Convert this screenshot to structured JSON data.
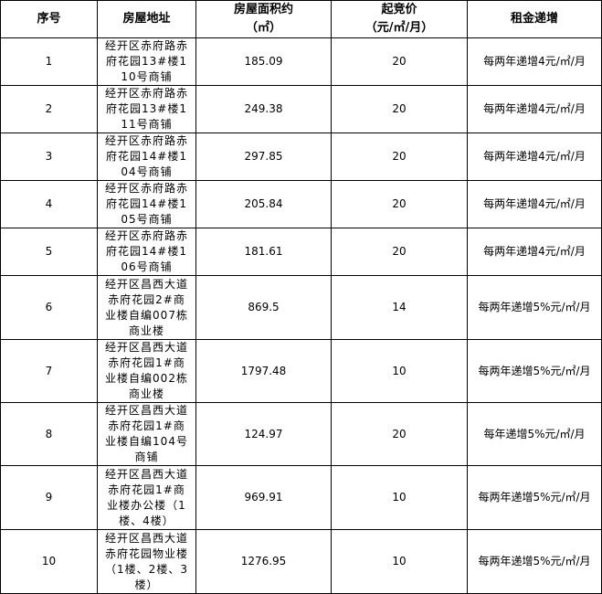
{
  "headers": [
    "序号",
    "房屋地址",
    "房屋面积约（㎡）",
    "起竞价（元/㎡/月）",
    "租金递增"
  ],
  "header_lines": {
    "area": [
      "房屋面积约",
      "（㎡）"
    ],
    "price": [
      "起竞价",
      "（元/㎡/月）"
    ]
  },
  "rows": [
    {
      "no": "1",
      "address": "经开区赤府路赤府花园13#楼110号商铺",
      "area": "185.09",
      "price": "20",
      "increase": "每两年递增4元/㎡/月"
    },
    {
      "no": "2",
      "address": "经开区赤府路赤府花园13#楼111号商铺",
      "area": "249.38",
      "price": "20",
      "increase": "每两年递增4元/㎡/月"
    },
    {
      "no": "3",
      "address": "经开区赤府路赤府花园14#楼104号商铺",
      "area": "297.85",
      "price": "20",
      "increase": "每两年递增4元/㎡/月"
    },
    {
      "no": "4",
      "address": "经开区赤府路赤府花园14#楼105号商铺",
      "area": "205.84",
      "price": "20",
      "increase": "每两年递增4元/㎡/月"
    },
    {
      "no": "5",
      "address": "经开区赤府路赤府花园14#楼106号商铺",
      "area": "181.61",
      "price": "20",
      "increase": "每两年递增4元/㎡/月"
    },
    {
      "no": "6",
      "address": "经开区昌西大道赤府花园2#商业楼自编007栋商业楼",
      "area": "869.5",
      "price": "14",
      "increase": "每两年递增5%元/㎡/月"
    },
    {
      "no": "7",
      "address": "经开区昌西大道赤府花园1#商业楼自编002栋商业楼",
      "area": "1797.48",
      "price": "10",
      "increase": "每两年递增5%元/㎡/月"
    },
    {
      "no": "8",
      "address": "经开区昌西大道赤府花园1#商业楼自编104号商铺",
      "area": "124.97",
      "price": "20",
      "increase": "每年递增5%元/㎡/月"
    },
    {
      "no": "9",
      "address": "经开区昌西大道赤府花园1#商业楼办公楼（1楼、4楼）",
      "area": "969.91",
      "price": "10",
      "increase": "每两年递增5%元/㎡/月"
    },
    {
      "no": "10",
      "address": "经开区昌西大道赤府花园物业楼（1楼、2楼、3楼）",
      "area": "1276.95",
      "price": "10",
      "increase": "每两年递增5%元/㎡/月"
    }
  ]
}
